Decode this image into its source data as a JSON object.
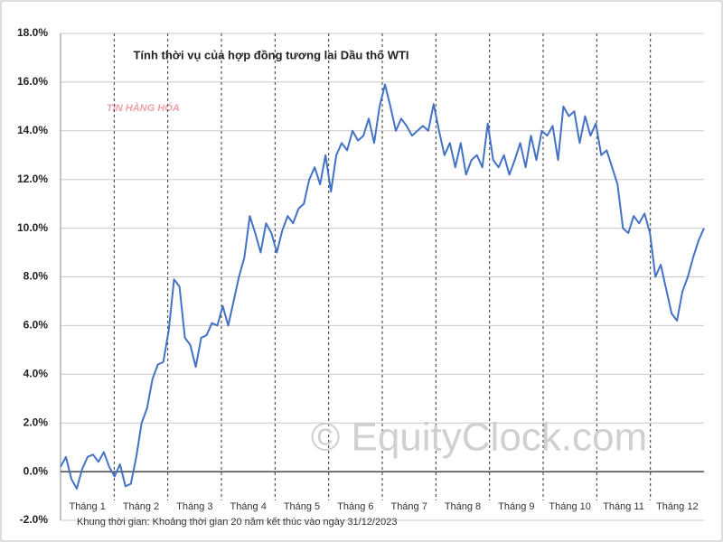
{
  "chart_data": {
    "type": "line",
    "title": "Tính thời vụ của hợp đồng tương lai Dầu thô WTI",
    "footer": "Khung thời gian: Khoảng thời gian 20 năm kết thúc vào ngày 31/12/2023",
    "watermark": "© EquityClock.com",
    "logo": "TIN HÀNG HÓA",
    "x_labels": [
      "Tháng 1",
      "Tháng 2",
      "Tháng 3",
      "Tháng 4",
      "Tháng 5",
      "Tháng 6",
      "Tháng 7",
      "Tháng 8",
      "Tháng 9",
      "Tháng 10",
      "Tháng 11",
      "Tháng 12"
    ],
    "series": [
      {
        "name": "WTI",
        "color": "#4472c4",
        "values": [
          0.2,
          0.6,
          -0.3,
          -0.7,
          0.1,
          0.6,
          0.7,
          0.4,
          0.8,
          0.2,
          -0.2,
          0.3,
          -0.6,
          -0.5,
          0.6,
          2.0,
          2.6,
          3.8,
          4.4,
          4.5,
          5.8,
          7.9,
          7.6,
          5.5,
          5.2,
          4.3,
          5.5,
          5.6,
          6.1,
          6.0,
          6.8,
          6.0,
          7.0,
          8.0,
          8.8,
          10.5,
          9.8,
          9.0,
          10.2,
          9.8,
          9.0,
          9.9,
          10.5,
          10.2,
          10.8,
          11.0,
          12.0,
          12.5,
          11.8,
          13.0,
          11.5,
          13.0,
          13.5,
          13.2,
          14.0,
          13.6,
          13.8,
          14.5,
          13.5,
          15.0,
          15.9,
          15.0,
          14.0,
          14.5,
          14.2,
          13.8,
          14.0,
          14.2,
          14.0,
          15.1,
          14.0,
          13.0,
          13.5,
          12.5,
          13.5,
          12.2,
          12.8,
          13.0,
          12.5,
          14.3,
          12.8,
          12.5,
          13.0,
          12.2,
          12.8,
          13.5,
          12.5,
          13.8,
          12.8,
          14.0,
          13.8,
          14.2,
          12.8,
          15.0,
          14.6,
          14.8,
          13.5,
          14.6,
          13.8,
          14.3,
          13.0,
          13.2,
          12.5,
          11.8,
          10.0,
          9.8,
          10.5,
          10.2,
          10.6,
          9.8,
          8.0,
          8.5,
          7.5,
          6.5,
          6.2,
          7.4,
          8.0,
          8.8,
          9.5,
          10.0
        ]
      }
    ],
    "ylim": [
      -2,
      18
    ],
    "yticks": [
      {
        "value": -2,
        "label": "-2.0%"
      },
      {
        "value": 0,
        "label": "0.0%"
      },
      {
        "value": 2,
        "label": "2.0%"
      },
      {
        "value": 4,
        "label": "4.0%"
      },
      {
        "value": 6,
        "label": "6.0%"
      },
      {
        "value": 8,
        "label": "8.0%"
      },
      {
        "value": 10,
        "label": "10.0%"
      },
      {
        "value": 12,
        "label": "12.0%"
      },
      {
        "value": 14,
        "label": "14.0%"
      },
      {
        "value": 16,
        "label": "16.0%"
      },
      {
        "value": 18,
        "label": "18.0%"
      }
    ],
    "grid": true
  }
}
